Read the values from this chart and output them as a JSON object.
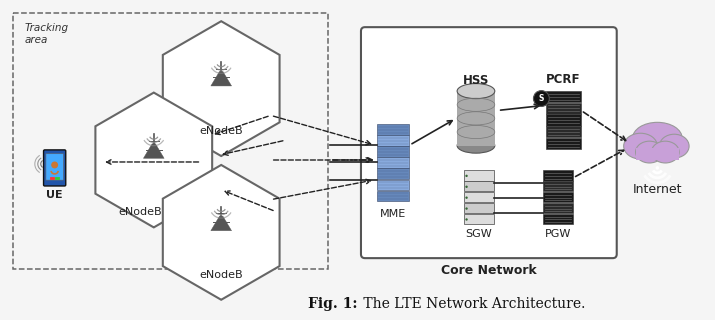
{
  "title_bold": "Fig. 1:",
  "title_rest": " The LTE Network Architecture.",
  "bg_color": "#f5f5f5",
  "tracking_label": "Tracking\narea",
  "enodeb1": "eNodeB",
  "enodeb2": "eNodeB",
  "enodeb3": "eNodeB",
  "ue_label": "UE",
  "mme_label": "MME",
  "hss_label": "HSS",
  "pcrf_label": "PCRF",
  "sgw_label": "SGW",
  "pgw_label": "PGW",
  "core_label": "Core Network",
  "internet_label": "Internet",
  "hex_edge": "#555555",
  "dash_box_edge": "#666666",
  "cloud_fill": "#c8a0d8",
  "cloud_edge": "#999999",
  "mme_fill": "#7090c0",
  "hss_fill": "#aaaaaa",
  "sgw_light": "#dddddd",
  "pgw_dark": "#333333",
  "pcrf_dark": "#333333",
  "arrow_col": "#222222"
}
